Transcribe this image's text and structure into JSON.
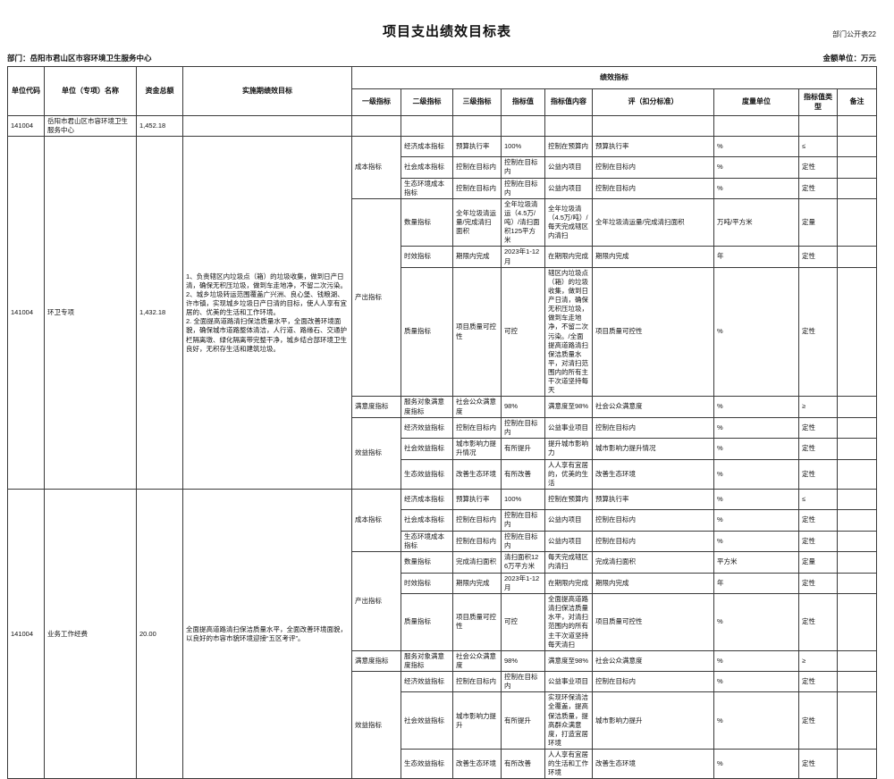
{
  "page": {
    "corner_label": "部门公开表22",
    "title": "项目支出绩效目标表",
    "department_line": "部门：岳阳市君山区市容环境卫生服务中心",
    "unit_note": "金额单位：万元"
  },
  "table": {
    "headers": {
      "unit_code": "单位代码",
      "unit_name": "单位（专项）名称",
      "total_fund": "资金总额",
      "impl_goal": "实施期绩效目标",
      "perf_group": "绩效指标",
      "sub": [
        "一级指标",
        "二级指标",
        "三级指标",
        "指标值",
        "指标值内容",
        "评（扣分标准）",
        "度量单位",
        "指标值类型",
        "备注"
      ]
    },
    "summary_row": {
      "code": "141004",
      "name": "岳阳市君山区市容环境卫生服务中心",
      "amount": "1,452.18"
    },
    "projects": [
      {
        "code": "141004",
        "name": "环卫专项",
        "amount": "1,432.18",
        "goal": "1、负责辖区内垃圾点（箱）的垃圾收集，做到日产日清，确保无积压垃圾，做到车走地净，不留二次污染。2、城乡垃圾转运范围覆盖广兴洲、良心堡、钱粮湖、许市镇，实现城乡垃圾日产日清的目标，使人人享有宜居的、优美的生活和工作环境。\n2. 全面提高道路清扫保洁质量水平，全面改善环境面貌，确保城市道路整体清洁，人行道、路缘石、交通护栏隔离墩、绿化隔离带完整干净，城乡结合部环境卫生良好，无积存生活和建筑垃圾。",
        "rows": [
          {
            "level1": {
              "label": "成本指标",
              "rowspan": 3
            },
            "level2": "经济成本指标",
            "level3": "预算执行率",
            "value": "100%",
            "content": "控制在预算内",
            "eval": "预算执行率",
            "unit": "%",
            "type": "≤",
            "note": ""
          },
          {
            "level2": "社会成本指标",
            "level3": "控制在目标内",
            "value": "控制在目标内",
            "content": "公益内项目",
            "eval": "控制在目标内",
            "unit": "%",
            "type": "定性",
            "note": ""
          },
          {
            "level2": "生态环境成本指标",
            "level3": "控制在目标内",
            "value": "控制在目标内",
            "content": "公益内项目",
            "eval": "控制在目标内",
            "unit": "%",
            "type": "定性",
            "note": ""
          },
          {
            "level1": {
              "label": "产出指标",
              "rowspan": 3
            },
            "level2": "数量指标",
            "level3": "全年垃圾清运量/完成清扫面积",
            "value": "全年垃圾清运（4.5万/吨）/清扫面积125平方米",
            "content": "全年垃圾清（4.5万/吨）/每天完成辖区内清扫",
            "eval": "全年垃圾清运量/完成清扫面积",
            "unit": "万吨/平方米",
            "type": "定量",
            "note": ""
          },
          {
            "level2": "时效指标",
            "level3": "期限内完成",
            "value": "2023年1-12月",
            "content": "在期限内完成",
            "eval": "期限内完成",
            "unit": "年",
            "type": "定性",
            "note": ""
          },
          {
            "level2": "质量指标",
            "level3": "项目质量可控性",
            "value": "可控",
            "content": "辖区内垃圾点（箱）的垃圾收集，做到日产日清，确保无积压垃圾，做到车走地净，不留二次污染。/全面提高道路清扫保洁质量水平，对清扫范围内的所有主干次道坚持每天",
            "eval": "项目质量可控性",
            "unit": "%",
            "type": "定性",
            "note": ""
          },
          {
            "level1": {
              "label": "满意度指标",
              "rowspan": 1
            },
            "level2": "服务对象满意度指标",
            "level3": "社会公众满意度",
            "value": "98%",
            "content": "满意度至98%",
            "eval": "社会公众满意度",
            "unit": "%",
            "type": "≥",
            "note": ""
          },
          {
            "level1": {
              "label": "效益指标",
              "rowspan": 3
            },
            "level2": "经济效益指标",
            "level3": "控制在目标内",
            "value": "控制在目标内",
            "content": "公益事业项目",
            "eval": "控制在目标内",
            "unit": "%",
            "type": "定性",
            "note": ""
          },
          {
            "level2": "社会效益指标",
            "level3": "城市影响力提升情况",
            "value": "有所提升",
            "content": "提升城市影响力",
            "eval": "城市影响力提升情况",
            "unit": "%",
            "type": "定性",
            "note": ""
          },
          {
            "level2": "生态效益指标",
            "level3": "改善生态环境",
            "value": "有所改善",
            "content": "人人享有宜居的，优美的生活",
            "eval": "改善生态环境",
            "unit": "%",
            "type": "定性",
            "note": ""
          }
        ]
      },
      {
        "code": "141004",
        "name": "业务工作经费",
        "amount": "20.00",
        "goal": "全面提高道路清扫保洁质量水平，全面改善环境面貌，以良好的市容市貌环境迎接“五区考评”。",
        "rows": [
          {
            "level1": {
              "label": "成本指标",
              "rowspan": 3
            },
            "level2": "经济成本指标",
            "level3": "预算执行率",
            "value": "100%",
            "content": "控制在预算内",
            "eval": "预算执行率",
            "unit": "%",
            "type": "≤",
            "note": ""
          },
          {
            "level2": "社会成本指标",
            "level3": "控制在目标内",
            "value": "控制在目标内",
            "content": "公益内项目",
            "eval": "控制在目标内",
            "unit": "%",
            "type": "定性",
            "note": ""
          },
          {
            "level2": "生态环境成本指标",
            "level3": "控制在目标内",
            "value": "控制在目标内",
            "content": "公益内项目",
            "eval": "控制在目标内",
            "unit": "%",
            "type": "定性",
            "note": ""
          },
          {
            "level1": {
              "label": "产出指标",
              "rowspan": 3
            },
            "level2": "数量指标",
            "level3": "完成清扫面积",
            "value": "清扫面积126万平方米",
            "content": "每天完成辖区内清扫",
            "eval": "完成清扫面积",
            "unit": "平方米",
            "type": "定量",
            "note": ""
          },
          {
            "level2": "时效指标",
            "level3": "期限内完成",
            "value": "2023年1-12月",
            "content": "在期限内完成",
            "eval": "期限内完成",
            "unit": "年",
            "type": "定性",
            "note": ""
          },
          {
            "level2": "质量指标",
            "level3": "项目质量可控性",
            "value": "可控",
            "content": "全面提高道路清扫保洁质量水平，对清扫范围内的所有主干次道坚持每天清扫",
            "eval": "项目质量可控性",
            "unit": "%",
            "type": "定性",
            "note": ""
          },
          {
            "level1": {
              "label": "满意度指标",
              "rowspan": 1
            },
            "level2": "服务对象满意度指标",
            "level3": "社会公众满意度",
            "value": "98%",
            "content": "满意度至98%",
            "eval": "社会公众满意度",
            "unit": "%",
            "type": "≥",
            "note": ""
          },
          {
            "level1": {
              "label": "效益指标",
              "rowspan": 3
            },
            "level2": "经济效益指标",
            "level3": "控制在目标内",
            "value": "控制在目标内",
            "content": "公益事业项目",
            "eval": "控制在目标内",
            "unit": "%",
            "type": "定性",
            "note": ""
          },
          {
            "level2": "社会效益指标",
            "level3": "城市影响力提升",
            "value": "有所提升",
            "content": "实现环保清洁全覆盖，提高保洁质量，提高群众满意度，打造宜居环境",
            "eval": "城市影响力提升",
            "unit": "%",
            "type": "定性",
            "note": ""
          },
          {
            "level2": "生态效益指标",
            "level3": "改善生态环境",
            "value": "有所改善",
            "content": "人人享有宜居的生活和工作环境",
            "eval": "改善生态环境",
            "unit": "%",
            "type": "定性",
            "note": ""
          }
        ]
      }
    ]
  }
}
